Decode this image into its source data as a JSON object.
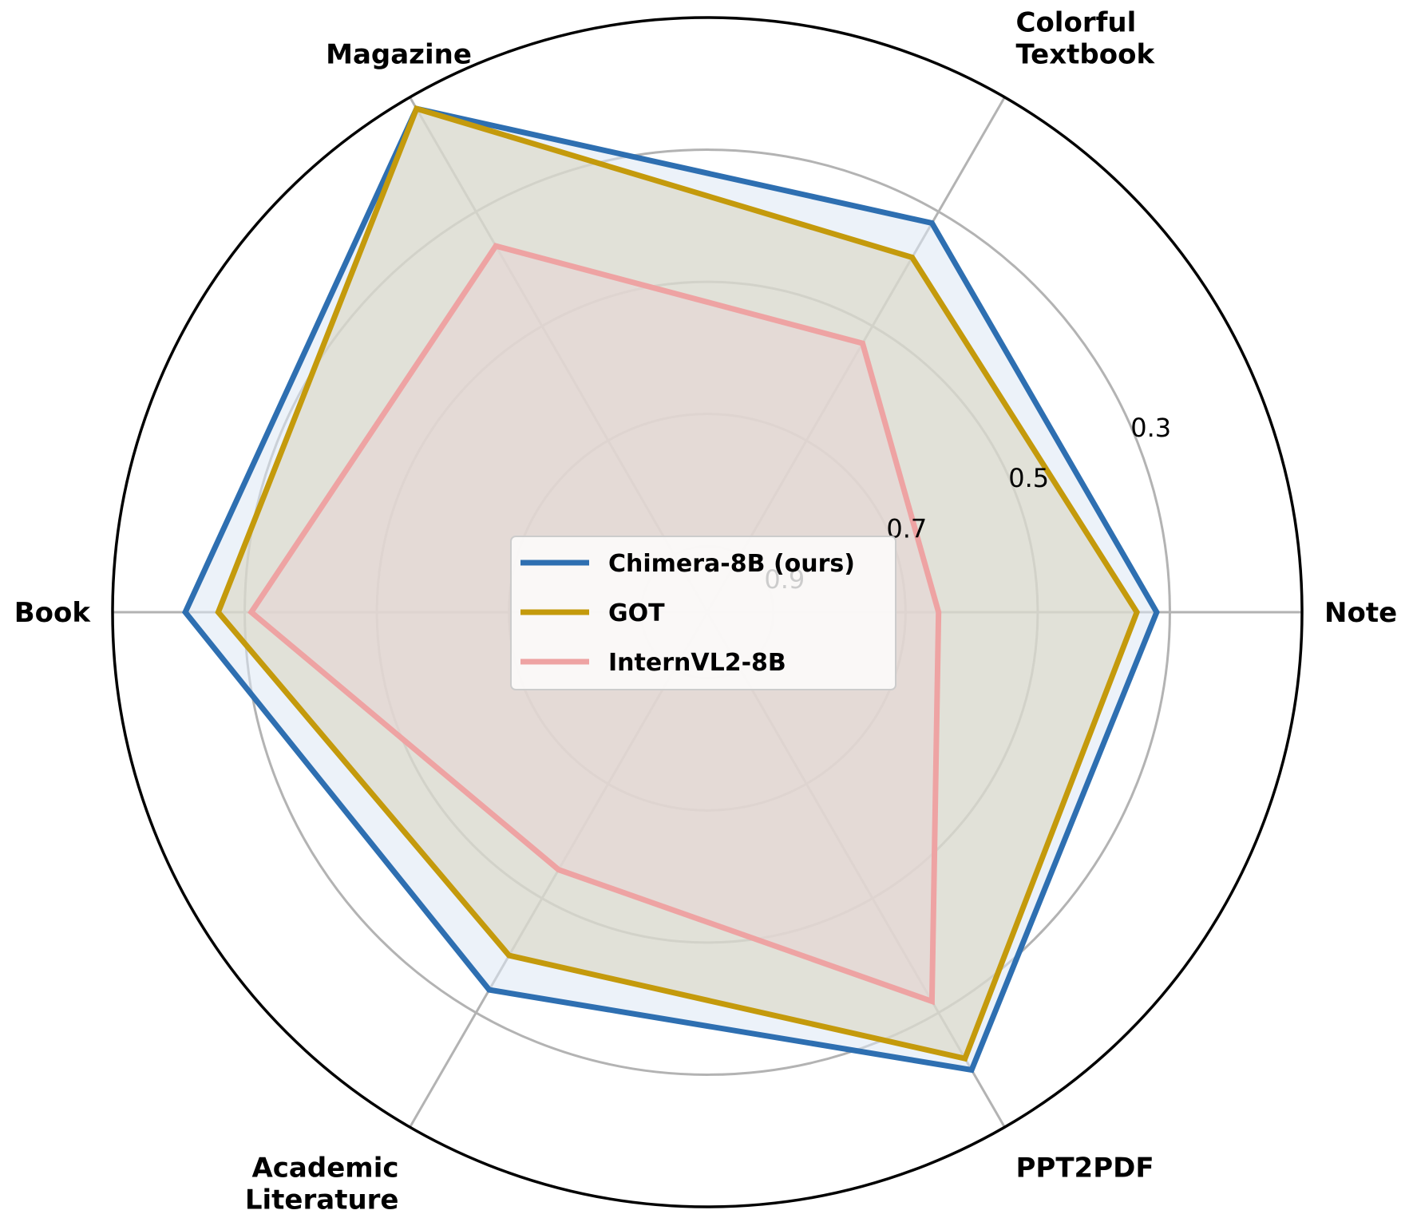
{
  "chart_data": {
    "type": "radar",
    "categories": [
      "Note",
      "Colorful\nTextbook",
      "Magazine",
      "Book",
      "Academic\nLiterature",
      "PPT2PDF"
    ],
    "radial_range": [
      1.0,
      0.1
    ],
    "radial_ticks": [
      0.9,
      0.7,
      0.5,
      0.3
    ],
    "grid": true,
    "legend_position": "center",
    "series": [
      {
        "name": "Chimera-8B (ours)",
        "color": "#2e6fb1",
        "fill": "#dde8f4",
        "values": [
          0.32,
          0.32,
          0.12,
          0.21,
          0.34,
          0.2
        ]
      },
      {
        "name": "GOT",
        "color": "#c49a0c",
        "fill": "#d9d4bd",
        "values": [
          0.35,
          0.38,
          0.12,
          0.26,
          0.4,
          0.22
        ]
      },
      {
        "name": "InternVL2-8B",
        "color": "#eea3a3",
        "fill": "#e8d5d5",
        "values": [
          0.65,
          0.53,
          0.36,
          0.31,
          0.55,
          0.32
        ]
      }
    ]
  }
}
